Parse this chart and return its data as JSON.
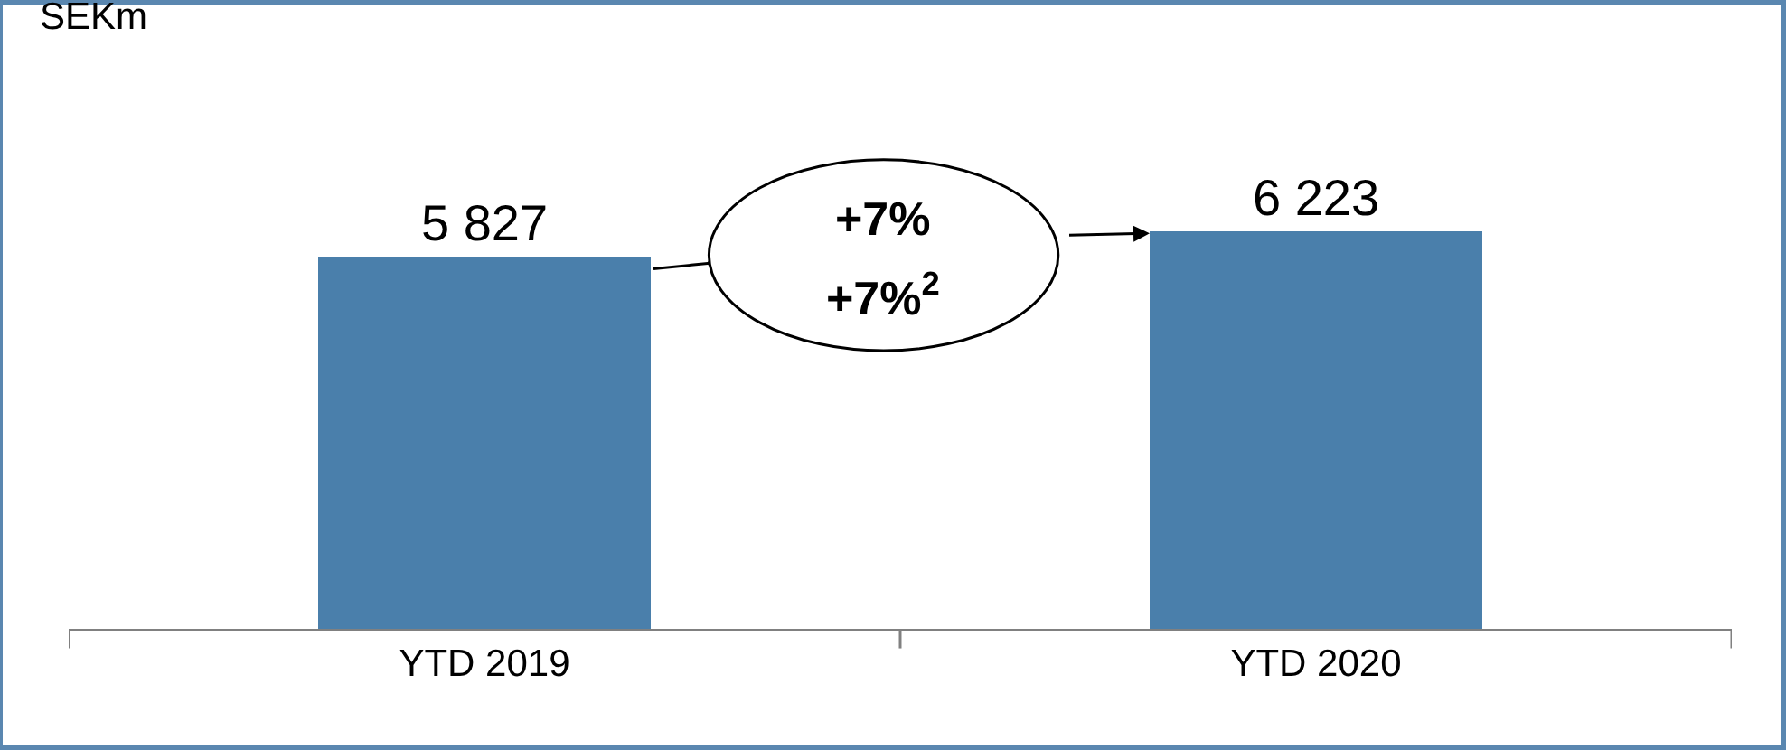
{
  "chart_data": {
    "type": "bar",
    "categories": [
      "YTD 2019",
      "YTD 2020"
    ],
    "values": [
      5827,
      6223
    ],
    "color": "#4a7fab",
    "value_labels": [
      "5 827",
      "6 223"
    ],
    "annotations": [
      "SEKm",
      "+7%",
      "+7%$^{2}$"
    ],
    "legend": false
  }
}
